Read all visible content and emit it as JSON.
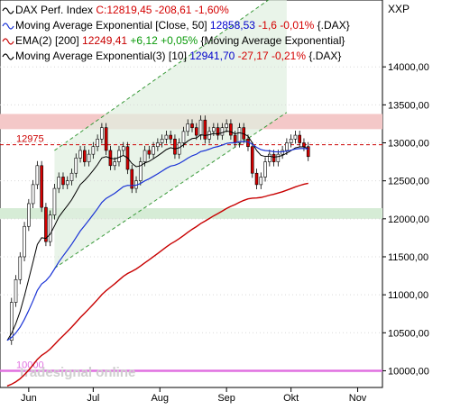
{
  "chart_data": {
    "type": "candlestick",
    "title": "DAX Perf. Index",
    "legend": [
      {
        "parts": [
          {
            "text": "DAX Perf. Index",
            "color": "#000000"
          },
          {
            "text": " C:12819,45",
            "color": "#d40000"
          },
          {
            "text": " -208,61",
            "color": "#d40000"
          },
          {
            "text": " -1,60%",
            "color": "#d40000"
          }
        ],
        "line_color": "#000000"
      },
      {
        "parts": [
          {
            "text": "Moving Average Exponential [Close, 50]",
            "color": "#000000"
          },
          {
            "text": " 12858,53",
            "color": "#0000cc"
          },
          {
            "text": " -1,6 -0,01%",
            "color": "#d40000"
          },
          {
            "text": " {.DAX}",
            "color": "#000000"
          }
        ],
        "line_color": "#1a33d6"
      },
      {
        "parts": [
          {
            "text": "EMA(2) [200]",
            "color": "#000000"
          },
          {
            "text": " 12249,41",
            "color": "#c80000"
          },
          {
            "text": " +6,12 +0,05%",
            "color": "#0a9a0a"
          },
          {
            "text": " {Moving Average Exponential}",
            "color": "#000000"
          }
        ],
        "line_color": "#c80000"
      },
      {
        "parts": [
          {
            "text": "Moving Average Exponential(3) [10]",
            "color": "#000000"
          },
          {
            "text": " 12941,70",
            "color": "#0000cc"
          },
          {
            "text": " -27,17 -0,21%",
            "color": "#d40000"
          },
          {
            "text": " {.DAX}",
            "color": "#000000"
          }
        ],
        "line_color": "#000000"
      }
    ],
    "right_axis_label": "XXP",
    "y_ticks": [
      10000,
      10500,
      11000,
      11500,
      12000,
      12500,
      13000,
      13500,
      14000
    ],
    "y_tick_labels": [
      "10000,00",
      "10500,00",
      "11000,00",
      "11500,00",
      "12000,00",
      "12500,00",
      "13000,00",
      "13500,00",
      "14000,00"
    ],
    "ylim": [
      9780,
      14880
    ],
    "x_labels": [
      {
        "label": "Jun",
        "day": 10
      },
      {
        "label": "Jul",
        "day": 40
      },
      {
        "label": "Aug",
        "day": 71
      },
      {
        "label": "Sep",
        "day": 102
      },
      {
        "label": "Okt",
        "day": 132
      },
      {
        "label": "Nov",
        "day": 163
      }
    ],
    "xlim": [
      0,
      172
    ],
    "horizontal_levels": [
      {
        "label": "12975",
        "value": 12975,
        "color": "#cc0000",
        "style": "dashed"
      },
      {
        "label": "10000",
        "value": 10000,
        "color": "#e070e0",
        "style": "solid"
      }
    ],
    "support_zones": [
      {
        "from": 13180,
        "to": 13380,
        "color": "#f4c8c8"
      },
      {
        "from": 12000,
        "to": 12140,
        "color": "#d6ecd6"
      }
    ],
    "trend_channel": {
      "lower": [
        [
          22,
          11350
        ],
        [
          130,
          13400
        ]
      ],
      "upper": [
        [
          22,
          12900
        ],
        [
          130,
          15050
        ]
      ]
    },
    "watermark": "tradesignal online",
    "colors": {
      "up": "#ffffff",
      "down": "#d40000",
      "ema50": "#1a33d6",
      "ema200": "#c80000",
      "ema10": "#000000",
      "channel": "#3a9a3a",
      "channel_fill": "#dff0df"
    },
    "series": [
      {
        "name": "DAX Perf. Index",
        "type": "ohlc",
        "x": [
          0,
          2,
          4,
          6,
          8,
          10,
          12,
          14,
          16,
          18,
          20,
          22,
          24,
          26,
          28,
          30,
          32,
          34,
          36,
          38,
          40,
          42,
          44,
          46,
          48,
          50,
          52,
          54,
          56,
          58,
          60,
          62,
          64,
          66,
          68,
          70,
          72,
          74,
          76,
          78,
          80,
          82,
          84,
          86,
          88,
          90,
          92,
          94,
          96,
          98,
          100,
          102,
          104,
          106,
          108,
          110,
          112,
          114,
          116,
          118,
          120,
          122,
          124,
          126,
          128,
          130,
          132,
          134,
          136,
          138,
          140
        ],
        "close": [
          10400,
          10900,
          11200,
          11500,
          11900,
          12200,
          12450,
          12700,
          12150,
          11700,
          12050,
          12400,
          12550,
          12450,
          12500,
          12600,
          12800,
          12900,
          12750,
          12850,
          12950,
          13050,
          13200,
          12900,
          12700,
          12750,
          12900,
          12950,
          12650,
          12400,
          12500,
          12750,
          12900,
          12850,
          12950,
          13000,
          13050,
          13100,
          13050,
          12850,
          13000,
          13150,
          13250,
          13200,
          13100,
          13300,
          13050,
          13150,
          13200,
          13100,
          13200,
          13250,
          13100,
          13000,
          13200,
          13050,
          12950,
          12600,
          12450,
          12550,
          12750,
          12850,
          12750,
          12850,
          12900,
          13000,
          13050,
          13100,
          13000,
          12950,
          12819
        ]
      }
    ]
  }
}
